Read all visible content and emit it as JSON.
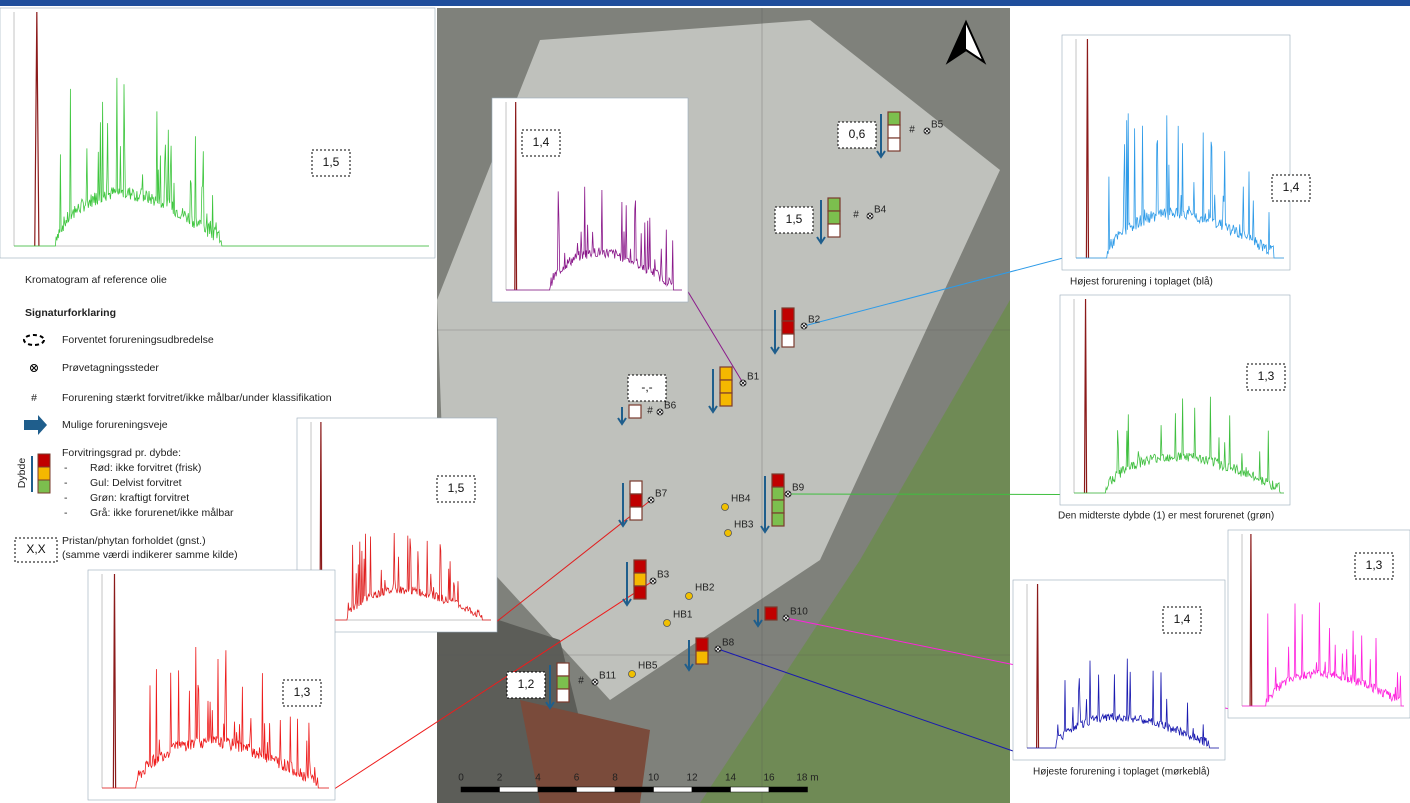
{
  "reference": {
    "caption": "Kromatogram af reference olie",
    "ratio": "1,5",
    "color": "#3ec63e"
  },
  "legend": {
    "title": "Signaturforklaring",
    "items": [
      "Forventet forureningsudbredelse",
      "Prøvetagningssteder",
      "Forurening stærkt forvitret/ikke målbar/under klassifikation",
      "Mulige forureningsveje"
    ],
    "hash": "#",
    "depth_title": "Forvitringsgrad pr. dybde:",
    "depth_axis": "Dybde",
    "depth_items": [
      "Rød: ikke forvitret (frisk)",
      "Gul: Delvist forvitret",
      "Grøn: kraftigt forvitret",
      "Grå: ikke forurenet/ikke målbar"
    ],
    "bullet": "-",
    "ratio_box": "X,X",
    "ratio_text": [
      "Pristan/phytan forholdet (gnst.)",
      "(samme værdi indikerer samme kilde)"
    ]
  },
  "samples": [
    {
      "label": "B5",
      "ratio": "0,6",
      "hash": "#",
      "layers": [
        "#7cbf4e",
        "#ffffff",
        "#ffffff"
      ]
    },
    {
      "label": "B4",
      "ratio": "1,5",
      "hash": "#",
      "layers": [
        "#7cbf4e",
        "#7cbf4e",
        "#ffffff"
      ]
    },
    {
      "label": "B2",
      "layers": [
        "#c00000",
        "#c00000",
        "#ffffff"
      ]
    },
    {
      "label": "B1",
      "ratio": "-,-",
      "layers": [
        "#f5b800",
        "#f5b800",
        "#f5b800"
      ]
    },
    {
      "label": "B6",
      "hash": "#",
      "layers": [
        "#ffffff"
      ]
    },
    {
      "label": "B7",
      "layers": [
        "#ffffff",
        "#c00000",
        "#ffffff"
      ]
    },
    {
      "label": "B9",
      "layers": [
        "#c00000",
        "#7cbf4e",
        "#7cbf4e",
        "#7cbf4e"
      ]
    },
    {
      "label": "B3",
      "layers": [
        "#c00000",
        "#f5b800",
        "#c00000"
      ]
    },
    {
      "label": "B10",
      "layers": [
        "#c00000"
      ]
    },
    {
      "label": "B8",
      "layers": [
        "#c00000",
        "#f5b800"
      ]
    },
    {
      "label": "B11",
      "ratio": "1,2",
      "hash": "#",
      "layers": [
        "#ffffff",
        "#7cbf4e",
        "#ffffff"
      ]
    }
  ],
  "probes": [
    "HB4",
    "HB3",
    "HB2",
    "HB1",
    "HB5"
  ],
  "chromatograms": [
    {
      "sample": "B1",
      "ratio": "1,4",
      "color": "#8b1a8b"
    },
    {
      "sample": "B7",
      "ratio": "1,5",
      "color": "#e02020"
    },
    {
      "sample": "B3",
      "ratio": "1,3",
      "color": "#ee1c1c"
    },
    {
      "sample": "B2",
      "ratio": "1,4",
      "color": "#2e9be8",
      "caption": "Højest forurening i toplaget (blå)"
    },
    {
      "sample": "B9",
      "ratio": "1,3",
      "color": "#3fbf3f",
      "caption": "Den midterste dybde (1) er mest forurenet (grøn)"
    },
    {
      "sample": "B10",
      "ratio": "1,3",
      "color": "#ff22dd"
    },
    {
      "sample": "B8",
      "ratio": "1,4",
      "color": "#1a1ab0",
      "caption": "Højeste forurening i toplaget (mørkeblå)"
    }
  ],
  "scale": [
    "0",
    "2",
    "4",
    "6",
    "8",
    "10",
    "12",
    "14",
    "16",
    "18 m"
  ]
}
